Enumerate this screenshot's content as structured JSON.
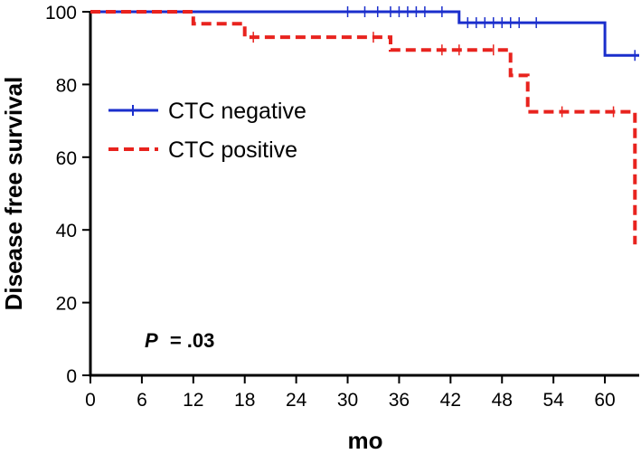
{
  "chart_data": {
    "type": "line",
    "chart_kind": "kaplan-meier survival curve",
    "title": "",
    "xlabel": "mo",
    "ylabel": "Disease free survival",
    "xlim": [
      0,
      64
    ],
    "ylim": [
      0,
      100
    ],
    "x_ticks": [
      0,
      6,
      12,
      18,
      24,
      30,
      36,
      42,
      48,
      54,
      60
    ],
    "y_ticks": [
      0,
      20,
      40,
      60,
      80,
      100
    ],
    "grid": false,
    "legend_position": "upper-left",
    "annotation": {
      "p_label": "P",
      "p_value": "= .03"
    },
    "series": [
      {
        "name": "CTC negative",
        "color": "#1a2ecc",
        "line_style": "solid",
        "x": [
          0,
          43,
          43,
          60,
          60,
          64
        ],
        "y": [
          100,
          100,
          97,
          97,
          88,
          88
        ],
        "censor_marks": [
          {
            "x": 30,
            "y": 100
          },
          {
            "x": 32,
            "y": 100
          },
          {
            "x": 33.5,
            "y": 100
          },
          {
            "x": 35,
            "y": 100
          },
          {
            "x": 36,
            "y": 100
          },
          {
            "x": 37,
            "y": 100
          },
          {
            "x": 38,
            "y": 100
          },
          {
            "x": 39,
            "y": 100
          },
          {
            "x": 41,
            "y": 100
          },
          {
            "x": 44,
            "y": 97
          },
          {
            "x": 45,
            "y": 97
          },
          {
            "x": 46,
            "y": 97
          },
          {
            "x": 47,
            "y": 97
          },
          {
            "x": 48,
            "y": 97
          },
          {
            "x": 49,
            "y": 97
          },
          {
            "x": 50,
            "y": 97
          },
          {
            "x": 52,
            "y": 97
          },
          {
            "x": 63.5,
            "y": 88
          }
        ]
      },
      {
        "name": "CTC positive",
        "color": "#e8231e",
        "line_style": "dashed",
        "x": [
          0,
          12,
          12,
          18,
          18,
          35,
          35,
          49,
          49,
          51,
          51,
          63.5,
          63.5
        ],
        "y": [
          100,
          100,
          96.7,
          96.7,
          93,
          93,
          89.5,
          89.5,
          82.5,
          82.5,
          72.5,
          72.5,
          36
        ],
        "censor_marks": [
          {
            "x": 19,
            "y": 93
          },
          {
            "x": 33,
            "y": 93
          },
          {
            "x": 41,
            "y": 89.5
          },
          {
            "x": 43,
            "y": 89.5
          },
          {
            "x": 47,
            "y": 89.5
          },
          {
            "x": 55,
            "y": 72.5
          },
          {
            "x": 61,
            "y": 72.5
          }
        ]
      }
    ]
  }
}
